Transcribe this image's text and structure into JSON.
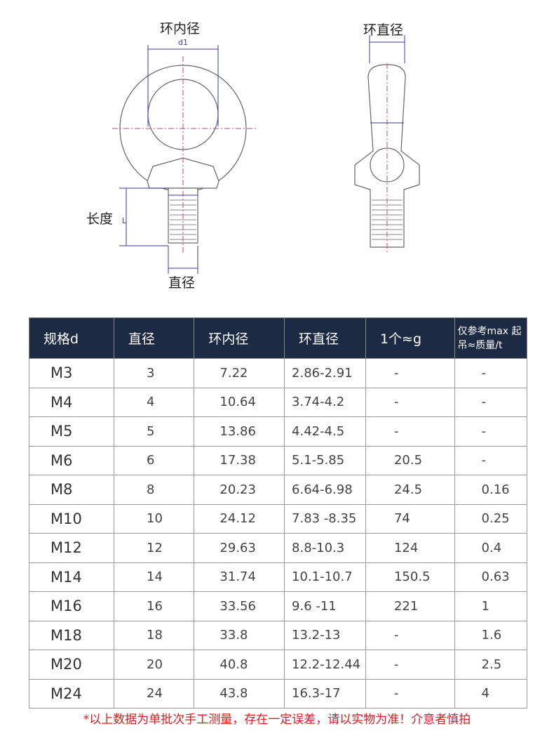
{
  "diagram": {
    "inner_ring_label": "环内径",
    "ring_diameter_label": "环直径",
    "length_label": "长度",
    "diameter_label": "直径",
    "d1": "d1",
    "L": "L",
    "line_color": "#666666",
    "dim_color": "#3a3aa8",
    "center_color": "#d04080"
  },
  "table": {
    "headers": [
      "规格d",
      "直径",
      "环内径",
      "环直径",
      "1个≈g",
      "仅参考max 起吊≈质量/t"
    ],
    "header_bg": "#1c2a44",
    "rows": [
      [
        "M3",
        "3",
        "7.22",
        "2.86-2.91",
        "-",
        "-"
      ],
      [
        "M4",
        "4",
        "10.64",
        "3.74-4.2",
        "-",
        "-"
      ],
      [
        "M5",
        "5",
        "13.86",
        "4.42-4.5",
        "-",
        "-"
      ],
      [
        "M6",
        "6",
        "17.38",
        "5.1-5.85",
        "20.5",
        "-"
      ],
      [
        "M8",
        "8",
        "20.23",
        "6.64-6.98",
        "24.5",
        "0.16"
      ],
      [
        "M10",
        "10",
        "24.12",
        "7.83 -8.35",
        "74",
        "0.25"
      ],
      [
        "M12",
        "12",
        "29.63",
        "8.8-10.3",
        "124",
        "0.4"
      ],
      [
        "M14",
        "14",
        "31.74",
        "10.1-10.7",
        "150.5",
        "0.63"
      ],
      [
        "M16",
        "16",
        "33.56",
        "9.6 -11",
        "221",
        "1"
      ],
      [
        "M18",
        "18",
        "33.8",
        "13.2-13",
        "-",
        "1.6"
      ],
      [
        "M20",
        "20",
        "40.8",
        "12.2-12.44",
        "-",
        "2.5"
      ],
      [
        "M24",
        "24",
        "43.8",
        "16.3-17",
        "-",
        "4"
      ]
    ]
  },
  "note": "*以上数据为单批次手工测量，存在一定误差，请以实物为准！介意者慎拍",
  "note_color": "#e0191f"
}
